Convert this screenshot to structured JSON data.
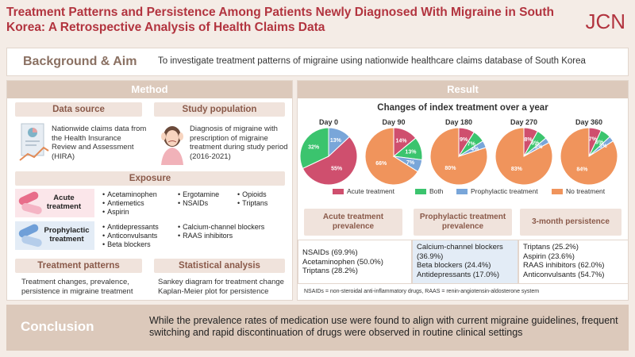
{
  "title": "Treatment Patterns and Persistence Among Patients Newly Diagnosed With Migraine in South Korea: A Retrospective Analysis of Health Claims Data",
  "logo": "JCN",
  "background": {
    "label": "Background & Aim",
    "text": "To investigate treatment patterns of migraine using nationwide healthcare claims database of South Korea"
  },
  "method": {
    "header": "Method",
    "data_source": {
      "label": "Data source",
      "text": "Nationwide claims data from the Health Insurance Review and Assessment (HIRA)"
    },
    "study_population": {
      "label": "Study population",
      "text": "Diagnosis of migraine with prescription of migraine treatment during study period (2016-2021)"
    },
    "exposure": {
      "label": "Exposure",
      "acute": {
        "label": "Acute treatment",
        "col1": [
          "Acetaminophen",
          "Antiemetics",
          "Aspirin"
        ],
        "col2": [
          "Ergotamine",
          "NSAIDs"
        ],
        "col3": [
          "Opioids",
          "Triptans"
        ]
      },
      "prophylactic": {
        "label": "Prophylactic treatment",
        "col1": [
          "Antidepressants",
          "Anticonvulsants",
          "Beta blockers"
        ],
        "col2": [
          "Calcium-channel blockers",
          "RAAS inhibitors"
        ]
      }
    },
    "treatment_patterns": {
      "label": "Treatment patterns",
      "text": "Treatment changes, prevalence, persistence in migraine treatment"
    },
    "statistical_analysis": {
      "label": "Statistical analysis",
      "line1": "Sankey diagram for treatment change",
      "line2": "Kaplan-Meier plot for persistence"
    }
  },
  "result": {
    "header": "Result",
    "chart_title": "Changes of index treatment over a year",
    "prevalence": {
      "acute_head": "Acute treatment prevalence",
      "prophylactic_head": "Prophylactic treatment prevalence",
      "persistence_head": "3-month persistence",
      "acute": [
        "NSAIDs (69.9%)",
        "Acetaminophen (50.0%)",
        "Triptans (28.2%)"
      ],
      "prophylactic": [
        "Calcium-channel blockers (36.9%)",
        "Beta blockers (24.4%)",
        "Antidepressants (17.0%)"
      ],
      "persistence": [
        "Triptans (25.2%)",
        "Aspirin (23.6%)",
        "RAAS inhibitors (62.0%)",
        "Anticonvulsants (54.7%)"
      ]
    },
    "footnote": "NSAIDs = non-steroidal anti-inflammatory drugs, RAAS = renin-angiotensin-aldosterone system"
  },
  "conclusion": {
    "label": "Conclusion",
    "text": "While the prevalence rates of medication use were found to align with current migraine guidelines, frequent switching and rapid discontinuation of drugs were observed in routine clinical settings"
  },
  "colors": {
    "acute": "#cf4f6e",
    "both": "#3bc46e",
    "prophylactic": "#79a6d9",
    "none": "#f0945c"
  },
  "chart_data": {
    "type": "pie",
    "title": "Changes of index treatment over a year",
    "categories": [
      "Acute treatment",
      "Both",
      "Prophylactic treatment",
      "No treatment"
    ],
    "series": [
      {
        "name": "Day 0",
        "values": [
          55,
          32,
          13,
          0
        ],
        "labels": [
          "55%",
          "32%",
          "13%",
          ""
        ]
      },
      {
        "name": "Day 90",
        "values": [
          14,
          13,
          7,
          66
        ],
        "labels": [
          "14%",
          "13%",
          "7%",
          "66%"
        ]
      },
      {
        "name": "Day 180",
        "values": [
          9,
          7,
          4,
          80
        ],
        "labels": [
          "9%",
          "7%",
          "4%",
          "80%"
        ]
      },
      {
        "name": "Day 270",
        "values": [
          8,
          6,
          3,
          83
        ],
        "labels": [
          "8%",
          "6%",
          "3%",
          "83%"
        ]
      },
      {
        "name": "Day 360",
        "values": [
          7,
          6,
          3,
          84
        ],
        "labels": [
          "7%",
          "6%",
          "3%",
          "84%"
        ]
      }
    ]
  }
}
